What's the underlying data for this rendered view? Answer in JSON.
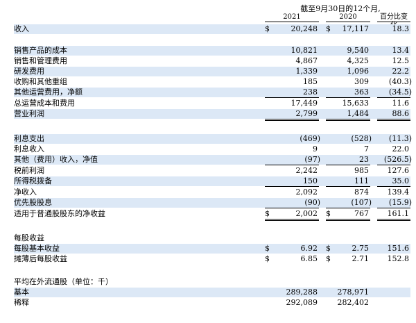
{
  "header": {
    "period": "截至9月30日的12个月,",
    "columns": [
      "2021",
      "2020",
      "百分比变化"
    ]
  },
  "rows": [
    {
      "label": "收入",
      "v2021": "20,248",
      "v2020": "17,117",
      "pct": "18.3",
      "dollar": true
    },
    {
      "label": "销售产品的成本",
      "v2021": "10,821",
      "v2020": "9,540",
      "pct": "13.4"
    },
    {
      "label": "销售和管理费用",
      "v2021": "4,867",
      "v2020": "4,325",
      "pct": "12.5"
    },
    {
      "label": "研发费用",
      "v2021": "1,339",
      "v2020": "1,096",
      "pct": "22.2"
    },
    {
      "label": "收购和其他重组",
      "v2021": "185",
      "v2020": "309",
      "pct": "(40.3)"
    },
    {
      "label": "其他运营费用，净额",
      "v2021": "238",
      "v2020": "363",
      "pct": "(34.5)"
    },
    {
      "label": "总运营成本和费用",
      "v2021": "17,449",
      "v2020": "15,633",
      "pct": "11.6"
    },
    {
      "label": "营业利润",
      "v2021": "2,799",
      "v2020": "1,484",
      "pct": "88.6"
    },
    {
      "label": "利息支出",
      "v2021": "(469)",
      "v2020": "(528)",
      "pct": "(11.3)"
    },
    {
      "label": "利息收入",
      "v2021": "9",
      "v2020": "7",
      "pct": "22.0"
    },
    {
      "label": "其他（费用）收入，净值",
      "v2021": "(97)",
      "v2020": "23",
      "pct": "(526.5)"
    },
    {
      "label": "税前利润",
      "v2021": "2,242",
      "v2020": "985",
      "pct": "127.6"
    },
    {
      "label": "所得税拨备",
      "v2021": "150",
      "v2020": "111",
      "pct": "35.0"
    },
    {
      "label": "净收入",
      "v2021": "2,092",
      "v2020": "874",
      "pct": "139.4"
    },
    {
      "label": "优先股股息",
      "v2021": "(90)",
      "v2020": "(107)",
      "pct": "(15.9)"
    },
    {
      "label": "适用于普通股股东的净收益",
      "v2021": "2,002",
      "v2020": "767",
      "pct": "161.1",
      "dollar": true
    },
    {
      "label": "每股收益",
      "v2021": "",
      "v2020": "",
      "pct": ""
    },
    {
      "label": "每股基本收益",
      "v2021": "6.92",
      "v2020": "2.75",
      "pct": "151.6",
      "dollar": true
    },
    {
      "label": "摊薄后每股收益",
      "v2021": "6.85",
      "v2020": "2.71",
      "pct": "152.8",
      "dollar": true
    },
    {
      "label": "平均在外流通股（单位：千）",
      "v2021": "",
      "v2020": "",
      "pct": ""
    },
    {
      "label": "基本",
      "v2021": "289,288",
      "v2020": "278,971",
      "pct": ""
    },
    {
      "label": "稀释",
      "v2021": "292,089",
      "v2020": "282,402",
      "pct": ""
    }
  ],
  "currency_symbol": "$",
  "colors": {
    "row_shade": "#dce8f6"
  }
}
